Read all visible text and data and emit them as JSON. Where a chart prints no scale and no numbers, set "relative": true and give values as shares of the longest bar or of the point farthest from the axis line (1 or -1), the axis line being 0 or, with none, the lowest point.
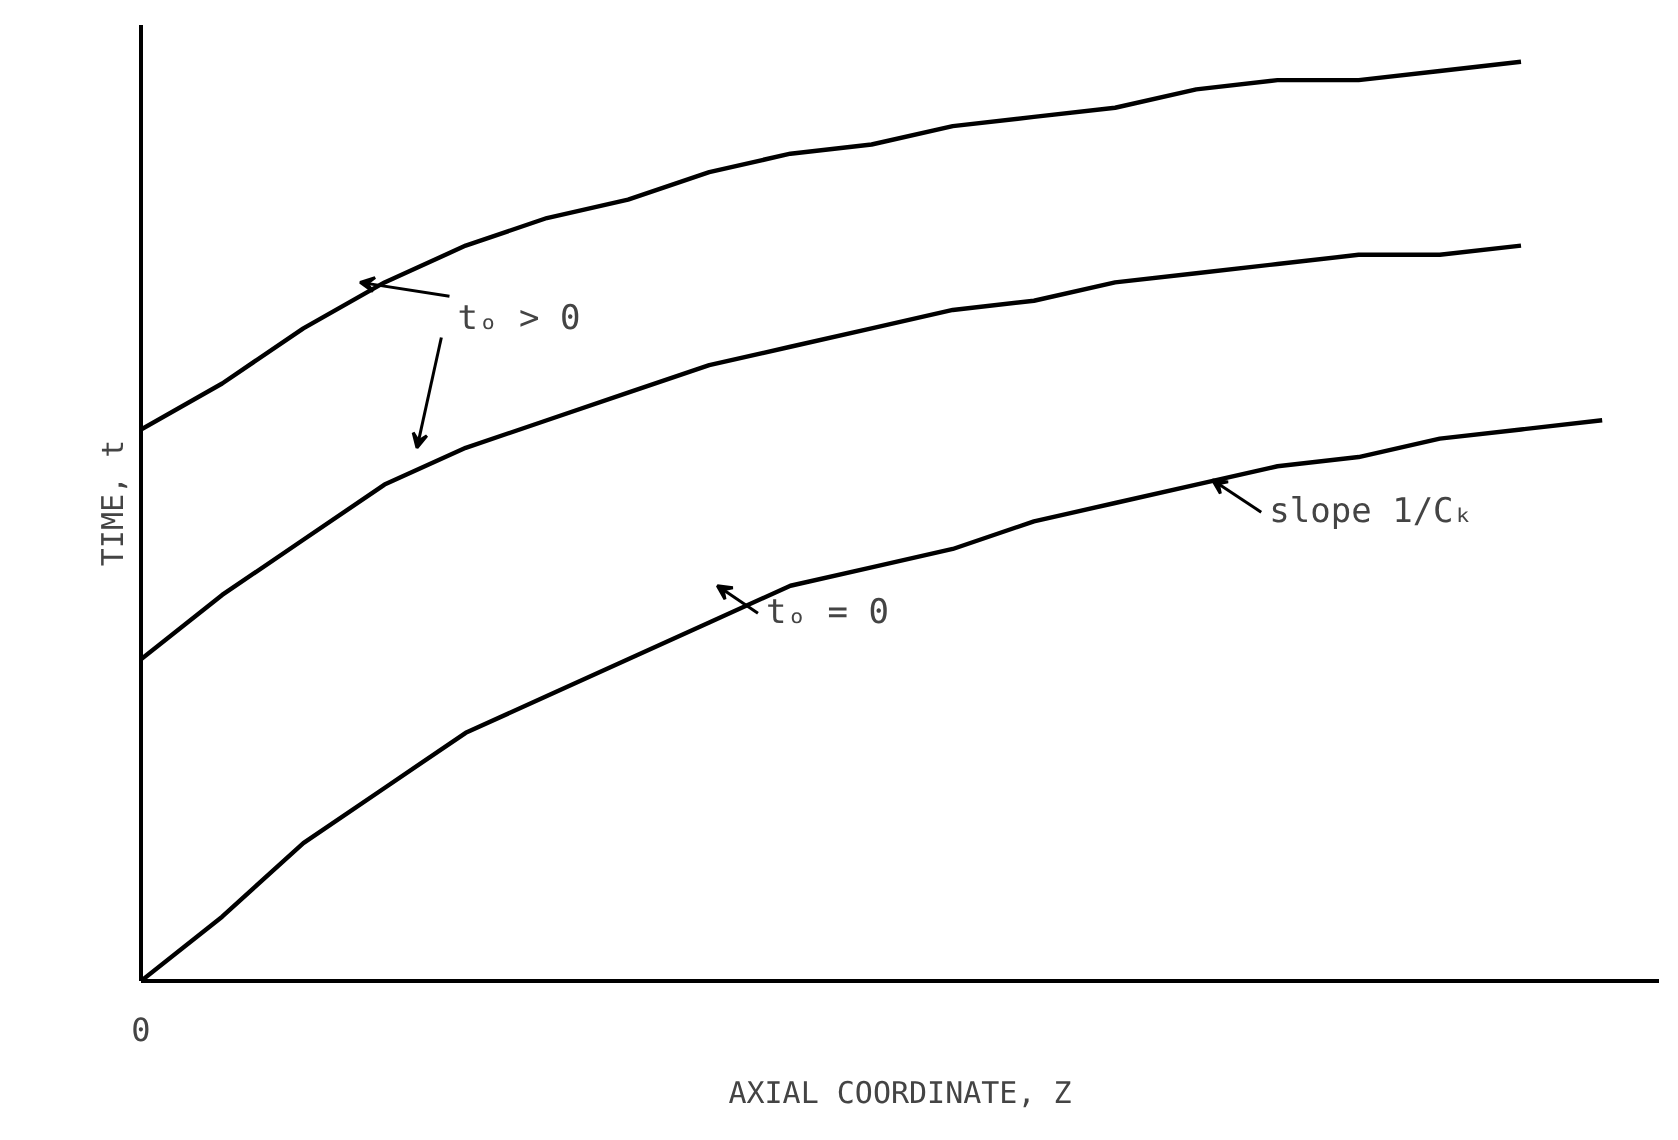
{
  "chart_data": {
    "type": "line",
    "relative": true,
    "xlabel": "AXIAL COORDINATE, Z",
    "ylabel": "TIME, t",
    "categories": [
      null,
      null,
      null,
      null,
      null,
      null,
      null,
      null,
      null,
      null,
      null,
      null,
      null,
      null,
      null,
      null,
      null,
      null,
      null
    ],
    "series": [
      {
        "color": "#000000",
        "values": [
          0.6,
          0.65,
          0.71,
          0.76,
          0.8,
          0.83,
          0.85,
          0.88,
          0.9,
          0.91,
          0.93,
          0.94,
          0.95,
          0.97,
          0.98,
          0.98,
          0.99,
          1.0,
          null
        ]
      },
      {
        "color": "#000000",
        "values": [
          0.35,
          0.42,
          0.48,
          0.54,
          0.58,
          0.61,
          0.64,
          0.67,
          0.69,
          0.71,
          0.73,
          0.74,
          0.76,
          0.77,
          0.78,
          0.79,
          0.79,
          0.8,
          null
        ]
      },
      {
        "color": "#000000",
        "values": [
          0.0,
          0.07,
          0.15,
          0.21,
          0.27,
          0.31,
          0.35,
          0.39,
          0.43,
          0.45,
          0.47,
          0.5,
          0.52,
          0.54,
          0.56,
          0.57,
          0.59,
          0.6,
          0.61
        ]
      }
    ],
    "annotations": [
      "tₒ > 0",
      "tₒ = 0",
      "slope 1/Cₖ",
      "0"
    ],
    "marker": "none",
    "line_style": "solid"
  }
}
